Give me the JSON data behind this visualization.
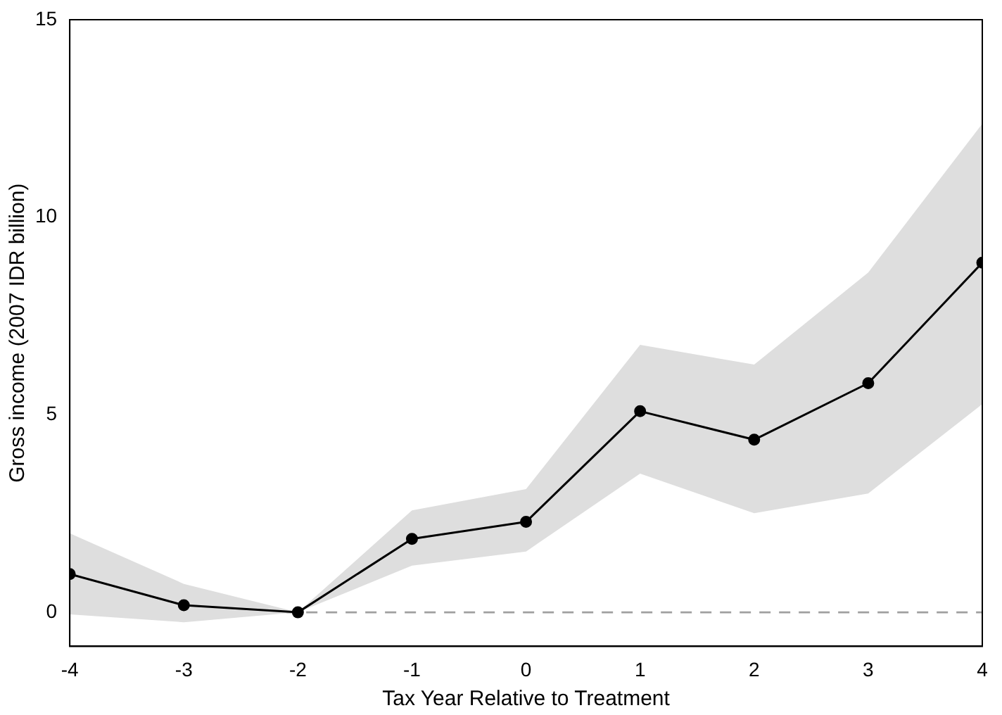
{
  "chart_data": {
    "type": "line",
    "xlabel": "Tax Year Relative to Treatment",
    "ylabel": "Gross income (2007 IDR billion)",
    "x": [
      -4,
      -3,
      -2,
      -1,
      0,
      1,
      2,
      3,
      4
    ],
    "series": [
      {
        "color": "#000000",
        "values": [
          0.97,
          0.18,
          0,
          1.86,
          2.29,
          5.09,
          4.37,
          5.8,
          8.85
        ],
        "lower": [
          -0.05,
          -0.25,
          0,
          1.18,
          1.54,
          3.51,
          2.51,
          3.01,
          5.27
        ],
        "upper": [
          2.0,
          0.72,
          0,
          2.58,
          3.12,
          6.77,
          6.27,
          8.6,
          12.37
        ]
      }
    ],
    "xlim": [
      -4,
      4
    ],
    "xticks": [
      -4,
      -3,
      -2,
      -1,
      0,
      1,
      2,
      3,
      4
    ],
    "ylim": [
      -0.86,
      15
    ],
    "yticks": [
      0,
      5,
      10,
      15
    ],
    "ref_lines": [
      {
        "axis": "y",
        "value": 0,
        "color": "#a0a0a0",
        "line_style": "dashed"
      }
    ],
    "grid": false,
    "legend": false,
    "marker": "circle",
    "line_style": "solid"
  }
}
